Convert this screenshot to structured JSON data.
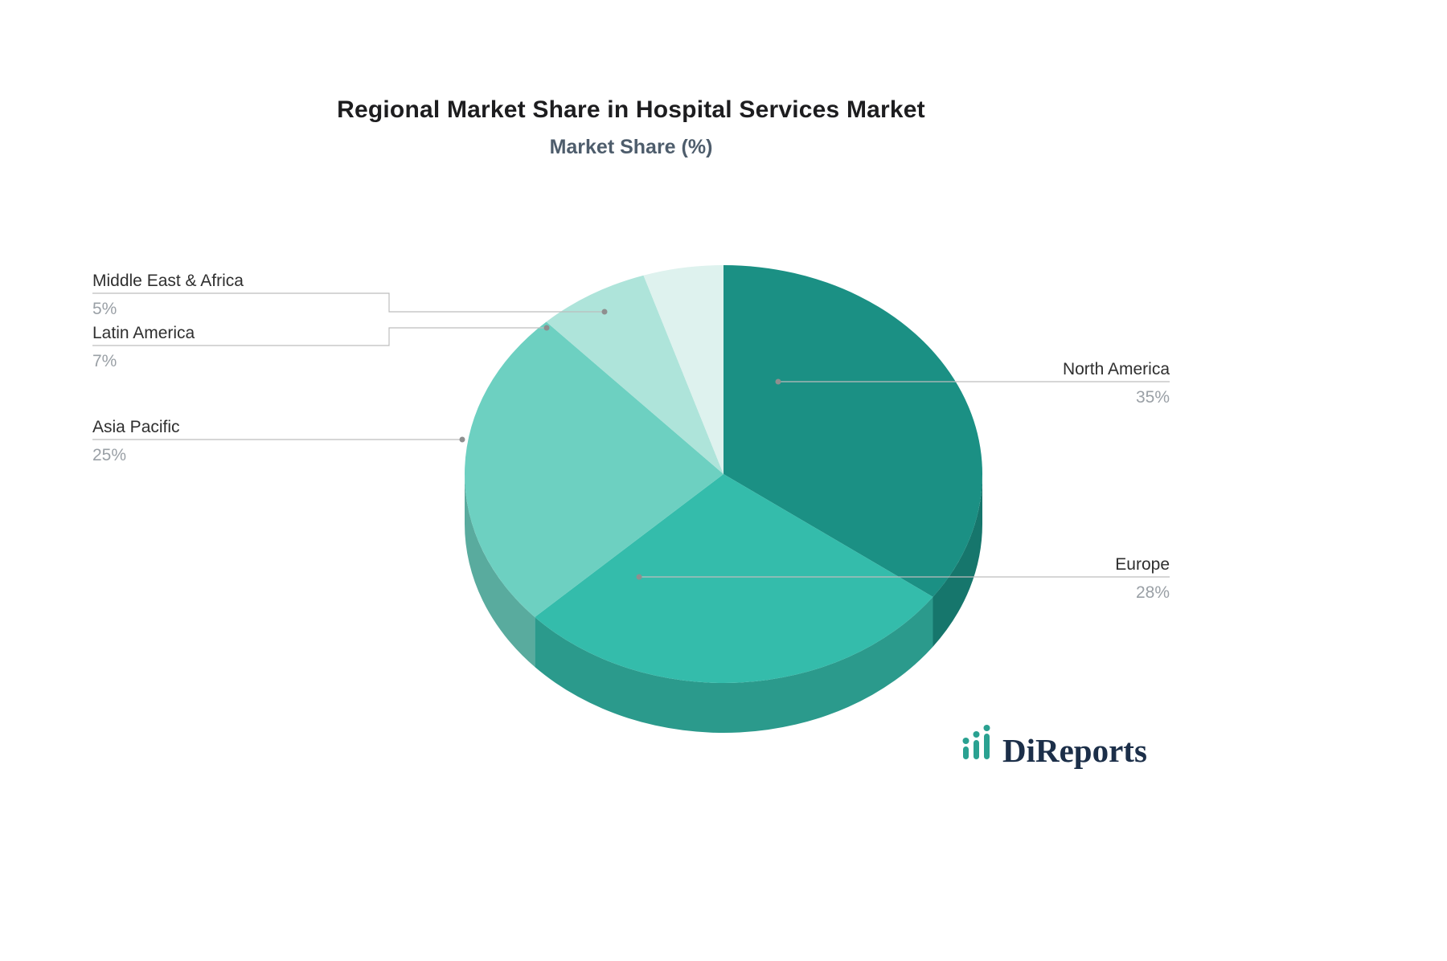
{
  "title": "Regional Market Share in Hospital Services Market",
  "subtitle": "Market Share (%)",
  "logo": {
    "text": "DiReports"
  },
  "chart_data": {
    "type": "pie",
    "title": "Regional Market Share in Hospital Services Market",
    "subtitle": "Market Share (%)",
    "unit": "%",
    "effect_3d": true,
    "legend_position": "none",
    "label_format": "name above leader line, percent below",
    "slices": [
      {
        "label": "North America",
        "value": 35,
        "color": "#1b9084"
      },
      {
        "label": "Europe",
        "value": 28,
        "color": "#34bcab"
      },
      {
        "label": "Asia Pacific",
        "value": 25,
        "color": "#6dd0c1"
      },
      {
        "label": "Latin America",
        "value": 7,
        "color": "#aee4da"
      },
      {
        "label": "Middle East & Africa",
        "value": 5,
        "color": "#def2ee"
      }
    ],
    "colors": {
      "label_name": "#2f2f2f",
      "label_value": "#9aa0a6",
      "leader_line": "#bdbdbd",
      "title": "#1d1d1f",
      "subtitle": "#4e5d6c",
      "logo_text": "#1c2f49",
      "logo_mark": "#2aa191"
    }
  }
}
